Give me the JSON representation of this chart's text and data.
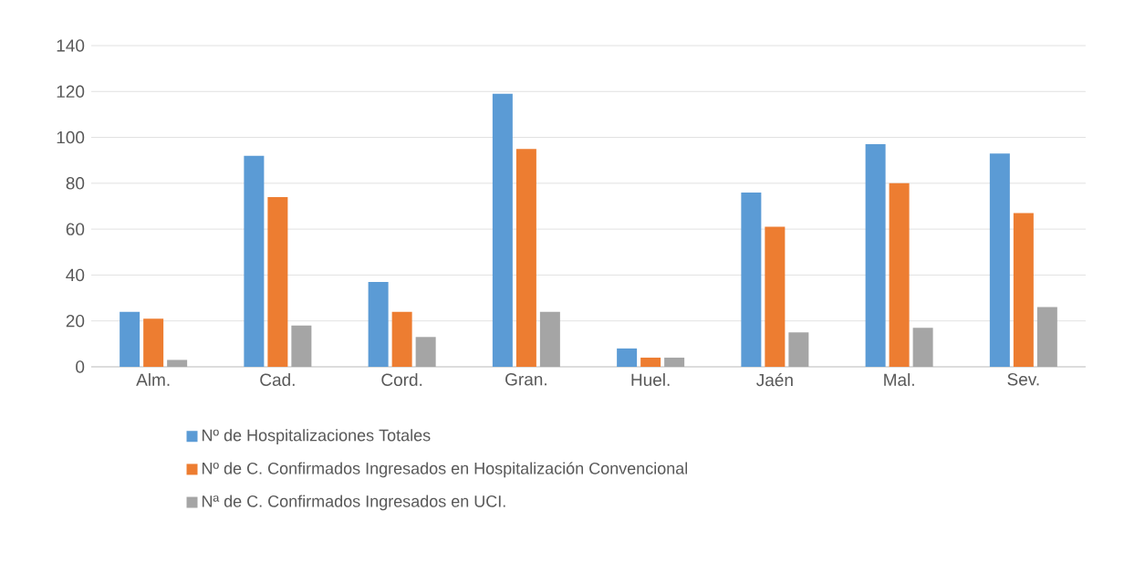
{
  "chart_data": {
    "type": "bar",
    "categories": [
      "Alm.",
      "Cad.",
      "Cord.",
      "Gran.",
      "Huel.",
      "Jaén",
      "Mal.",
      "Sev."
    ],
    "series": [
      {
        "name": "Nº de Hospitalizaciones Totales",
        "color": "#5b9bd5",
        "values": [
          24,
          92,
          37,
          119,
          8,
          76,
          97,
          93
        ]
      },
      {
        "name": "Nº de C. Confirmados Ingresados en Hospitalización Convencional",
        "color": "#ed7d31",
        "values": [
          21,
          74,
          24,
          95,
          4,
          61,
          80,
          67
        ]
      },
      {
        "name": "Nª de C. Confirmados Ingresados en UCI.",
        "color": "#a5a5a5",
        "values": [
          3,
          18,
          13,
          24,
          4,
          15,
          17,
          26
        ]
      }
    ],
    "ylim": [
      0,
      140
    ],
    "yticks": [
      0,
      20,
      40,
      60,
      80,
      100,
      120,
      140
    ],
    "grid": "y",
    "legend": "bottom left"
  }
}
